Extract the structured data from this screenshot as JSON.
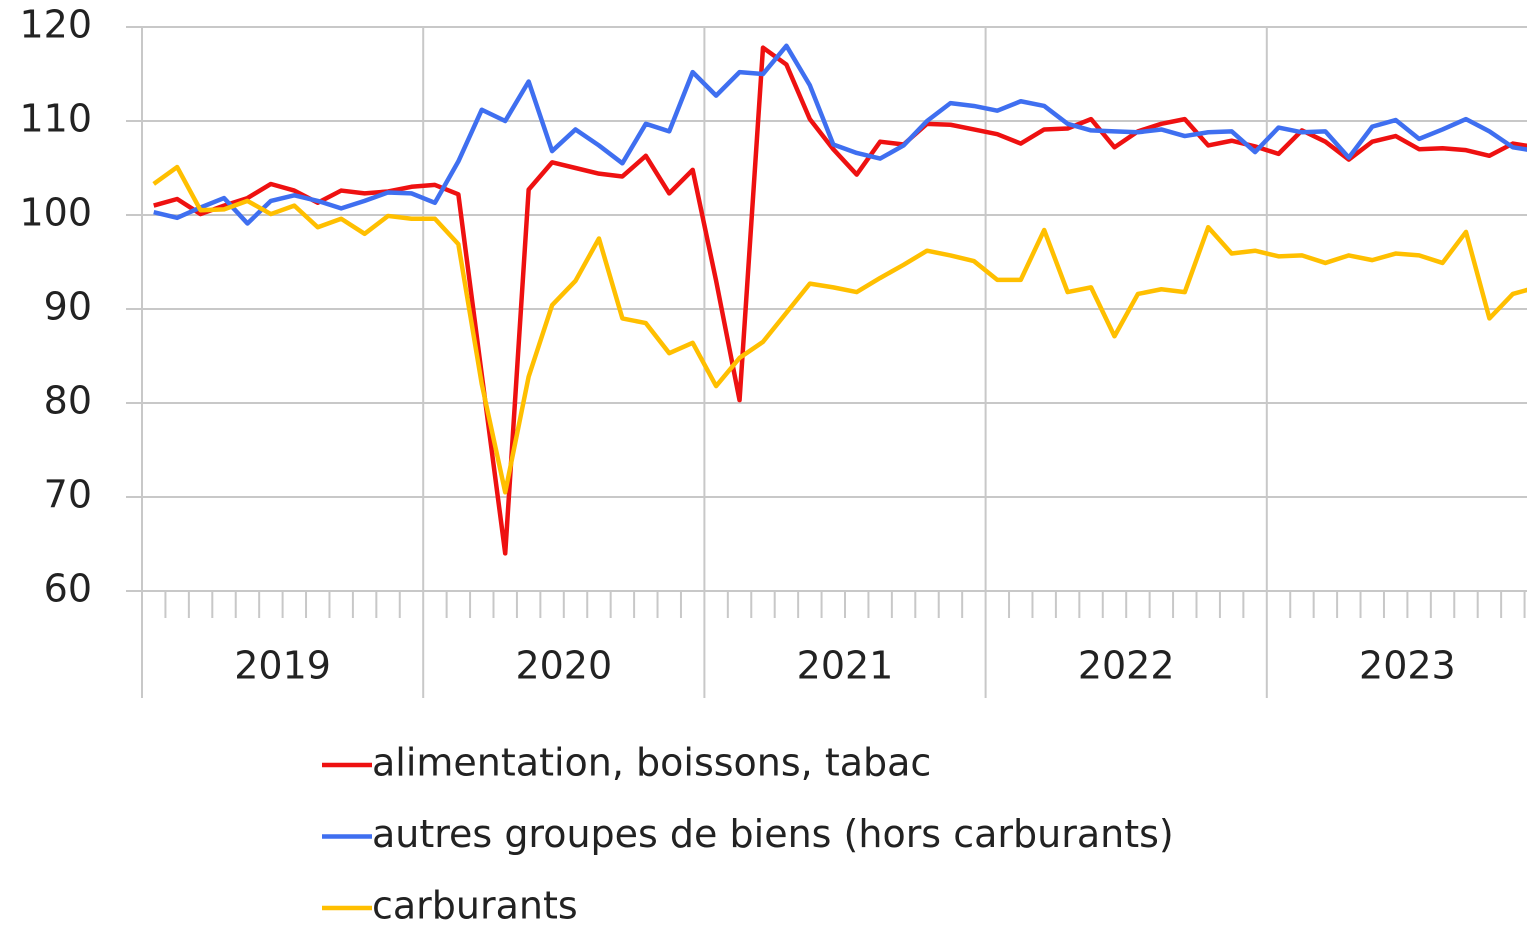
{
  "chart_data": {
    "type": "line",
    "year_labels": [
      "2019",
      "2020",
      "2021",
      "2022",
      "2023"
    ],
    "ylim": [
      60,
      120
    ],
    "yticks": [
      60,
      70,
      80,
      90,
      100,
      110,
      120
    ],
    "grid": true,
    "series": [
      {
        "name": "alimentation, boissons, tabac",
        "color": "#ee1111",
        "values": [
          101,
          101.7,
          100.1,
          101,
          101.8,
          103.3,
          102.6,
          101.3,
          102.6,
          102.3,
          102.5,
          103,
          103.2,
          102.2,
          83,
          64,
          102.7,
          105.6,
          105,
          104.4,
          104.1,
          106.3,
          102.3,
          104.8,
          93,
          80.3,
          117.8,
          116,
          110.2,
          107,
          104.3,
          107.8,
          107.5,
          109.7,
          109.6,
          109.1,
          108.6,
          107.6,
          109.1,
          109.2,
          110.2,
          107.2,
          108.9,
          109.7,
          110.2,
          107.4,
          107.9,
          107.3,
          106.5,
          109,
          107.8,
          105.9,
          107.8,
          108.4,
          107,
          107.1,
          106.9,
          106.3,
          107.6,
          107.2
        ]
      },
      {
        "name": "autres groupes de biens (hors carburants)",
        "color": "#3f6ff0",
        "values": [
          100.3,
          99.7,
          100.8,
          101.8,
          99.1,
          101.5,
          102.1,
          101.5,
          100.7,
          101.5,
          102.4,
          102.3,
          101.3,
          105.7,
          111.2,
          110,
          114.2,
          106.8,
          109.1,
          107.4,
          105.5,
          109.7,
          108.9,
          115.2,
          112.7,
          115.2,
          115,
          118,
          113.8,
          107.5,
          106.6,
          106,
          107.4,
          110,
          111.9,
          111.6,
          111.1,
          112.1,
          111.6,
          109.7,
          109,
          108.9,
          108.8,
          109.1,
          108.4,
          108.8,
          108.9,
          106.7,
          109.3,
          108.8,
          108.9,
          106.1,
          109.4,
          110.1,
          108.1,
          109.1,
          110.2,
          108.9,
          107.2,
          106.8
        ]
      },
      {
        "name": "carburants",
        "color": "#ffbf00",
        "values": [
          103.3,
          105.1,
          100.5,
          100.6,
          101.5,
          100.1,
          101,
          98.7,
          99.6,
          98,
          99.9,
          99.6,
          99.6,
          96.9,
          82,
          70.5,
          82.8,
          90.4,
          93,
          97.5,
          89,
          88.5,
          85.3,
          86.4,
          81.8,
          84.8,
          86.5,
          89.6,
          92.7,
          92.3,
          91.8,
          93.3,
          94.7,
          96.2,
          95.7,
          95.1,
          93.1,
          93.1,
          98.4,
          91.8,
          92.3,
          87.1,
          91.6,
          92.1,
          91.8,
          98.7,
          95.9,
          96.2,
          95.6,
          95.7,
          94.9,
          95.7,
          95.2,
          95.9,
          95.7,
          94.9,
          98.2,
          89,
          91.6,
          92.3
        ]
      }
    ]
  }
}
